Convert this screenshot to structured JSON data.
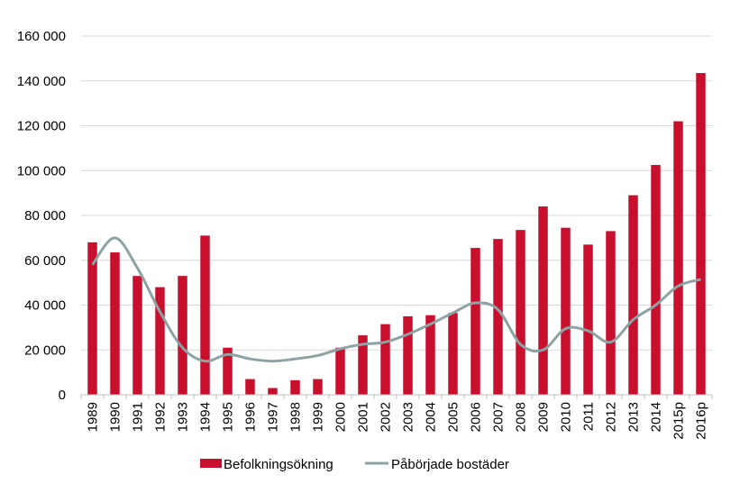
{
  "chart_data": {
    "type": "bar",
    "title": "",
    "xlabel": "",
    "ylabel": "",
    "ylim": [
      0,
      160000
    ],
    "grid": true,
    "legend_position": "bottom",
    "y_ticks": [
      "0",
      "20 000",
      "40 000",
      "60 000",
      "80 000",
      "100 000",
      "120 000",
      "140 000",
      "160 000"
    ],
    "y_tick_values": [
      0,
      20000,
      40000,
      60000,
      80000,
      100000,
      120000,
      140000,
      160000
    ],
    "categories": [
      "1989",
      "1990",
      "1991",
      "1992",
      "1993",
      "1994",
      "1995",
      "1996",
      "1997",
      "1998",
      "1999",
      "2000",
      "2001",
      "2002",
      "2003",
      "2004",
      "2005",
      "2006",
      "2007",
      "2008",
      "2009",
      "2010",
      "2011",
      "2012",
      "2013",
      "2014",
      "2015p",
      "2016p"
    ],
    "series": [
      {
        "name": "Befolkningsökning",
        "type": "bar",
        "color": "#c8102e",
        "values": [
          68000,
          63500,
          53000,
          48000,
          53000,
          71000,
          21000,
          7000,
          3000,
          6500,
          7000,
          21000,
          26500,
          31500,
          35000,
          35500,
          36500,
          65500,
          69500,
          73500,
          84000,
          74500,
          67000,
          73000,
          89000,
          102500,
          122000,
          143500
        ]
      },
      {
        "name": "Påbörjade bostäder",
        "type": "line",
        "color": "#8da3a3",
        "values": [
          58000,
          70000,
          56500,
          37000,
          21000,
          15000,
          18000,
          16000,
          15000,
          16000,
          17500,
          20500,
          22500,
          23500,
          27000,
          31500,
          36500,
          41000,
          38000,
          22500,
          20000,
          29500,
          28500,
          23500,
          33500,
          40000,
          48500,
          51500
        ]
      }
    ]
  }
}
